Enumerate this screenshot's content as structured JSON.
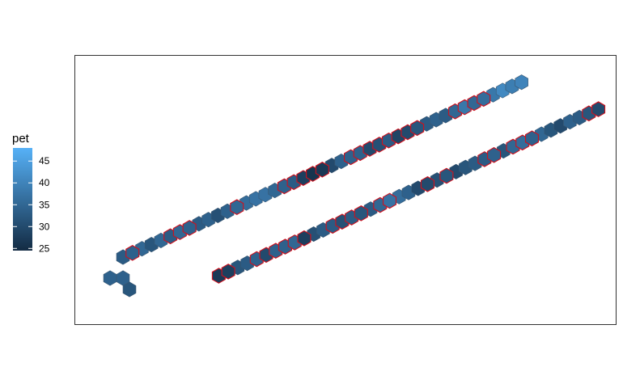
{
  "chart_data": {
    "type": "heatmap",
    "title": "",
    "xlabel": "",
    "ylabel": "",
    "grid": false,
    "legend": {
      "title": "pet",
      "placement": "left",
      "range": [
        24.5,
        48
      ],
      "ticks": [
        25,
        30,
        35,
        40,
        45
      ],
      "colors": [
        "#132B43",
        "#56B1F7"
      ]
    },
    "cells": [
      {
        "col": -1,
        "row": -1,
        "value": 34,
        "outlined": false
      },
      {
        "col": 0,
        "row": -1,
        "value": 34,
        "outlined": false
      },
      {
        "col": 1,
        "row": -1,
        "value": 32,
        "outlined": false
      },
      {
        "col": 0,
        "row": 0,
        "value": 33,
        "outlined": false
      },
      {
        "col": 1,
        "row": 0,
        "value": 34,
        "outlined": true
      },
      {
        "col": 2,
        "row": 0,
        "value": 35,
        "outlined": false
      },
      {
        "col": 3,
        "row": 0,
        "value": 32,
        "outlined": false
      },
      {
        "col": 4,
        "row": 0,
        "value": 35,
        "outlined": false
      },
      {
        "col": 5,
        "row": 0,
        "value": 33,
        "outlined": true
      },
      {
        "col": 6,
        "row": 0,
        "value": 35,
        "outlined": true
      },
      {
        "col": 7,
        "row": 0,
        "value": 34,
        "outlined": true
      },
      {
        "col": 8,
        "row": 0,
        "value": 33,
        "outlined": false
      },
      {
        "col": 9,
        "row": 0,
        "value": 34,
        "outlined": false
      },
      {
        "col": 10,
        "row": 0,
        "value": 31,
        "outlined": false
      },
      {
        "col": 11,
        "row": 0,
        "value": 34,
        "outlined": false
      },
      {
        "col": 12,
        "row": 0,
        "value": 35,
        "outlined": true
      },
      {
        "col": 13,
        "row": 0,
        "value": 36,
        "outlined": false
      },
      {
        "col": 14,
        "row": 0,
        "value": 37,
        "outlined": false
      },
      {
        "col": 15,
        "row": 0,
        "value": 37,
        "outlined": false
      },
      {
        "col": 16,
        "row": 0,
        "value": 35,
        "outlined": false
      },
      {
        "col": 17,
        "row": 0,
        "value": 34,
        "outlined": true
      },
      {
        "col": 18,
        "row": 0,
        "value": 33,
        "outlined": true
      },
      {
        "col": 19,
        "row": 0,
        "value": 28,
        "outlined": true
      },
      {
        "col": 20,
        "row": 0,
        "value": 26,
        "outlined": true
      },
      {
        "col": 21,
        "row": 0,
        "value": 27,
        "outlined": true
      },
      {
        "col": 22,
        "row": 0,
        "value": 30,
        "outlined": false
      },
      {
        "col": 23,
        "row": 0,
        "value": 34,
        "outlined": false
      },
      {
        "col": 24,
        "row": 0,
        "value": 34,
        "outlined": true
      },
      {
        "col": 25,
        "row": 0,
        "value": 34,
        "outlined": true
      },
      {
        "col": 26,
        "row": 0,
        "value": 30,
        "outlined": true
      },
      {
        "col": 27,
        "row": 0,
        "value": 31,
        "outlined": true
      },
      {
        "col": 28,
        "row": 0,
        "value": 33,
        "outlined": true
      },
      {
        "col": 29,
        "row": 0,
        "value": 29,
        "outlined": true
      },
      {
        "col": 30,
        "row": 0,
        "value": 30,
        "outlined": true
      },
      {
        "col": 31,
        "row": 0,
        "value": 32,
        "outlined": true
      },
      {
        "col": 32,
        "row": 0,
        "value": 33,
        "outlined": false
      },
      {
        "col": 33,
        "row": 0,
        "value": 34,
        "outlined": false
      },
      {
        "col": 34,
        "row": 0,
        "value": 33,
        "outlined": false
      },
      {
        "col": 35,
        "row": 0,
        "value": 35,
        "outlined": true
      },
      {
        "col": 36,
        "row": 0,
        "value": 38,
        "outlined": true
      },
      {
        "col": 37,
        "row": 0,
        "value": 35,
        "outlined": true
      },
      {
        "col": 38,
        "row": 0,
        "value": 36,
        "outlined": true
      },
      {
        "col": 39,
        "row": 0,
        "value": 38,
        "outlined": false
      },
      {
        "col": 40,
        "row": 0,
        "value": 41,
        "outlined": false
      },
      {
        "col": 41,
        "row": 0,
        "value": 39,
        "outlined": false
      },
      {
        "col": 42,
        "row": 0,
        "value": 40,
        "outlined": false
      },
      {
        "col": 6,
        "row": 1,
        "value": 27,
        "outlined": true
      },
      {
        "col": 7,
        "row": 1,
        "value": 28,
        "outlined": true
      },
      {
        "col": 8,
        "row": 1,
        "value": 32,
        "outlined": false
      },
      {
        "col": 9,
        "row": 1,
        "value": 33,
        "outlined": false
      },
      {
        "col": 10,
        "row": 1,
        "value": 34,
        "outlined": true
      },
      {
        "col": 11,
        "row": 1,
        "value": 30,
        "outlined": true
      },
      {
        "col": 12,
        "row": 1,
        "value": 34,
        "outlined": true
      },
      {
        "col": 13,
        "row": 1,
        "value": 34,
        "outlined": true
      },
      {
        "col": 14,
        "row": 1,
        "value": 35,
        "outlined": true
      },
      {
        "col": 15,
        "row": 1,
        "value": 28,
        "outlined": true
      },
      {
        "col": 16,
        "row": 1,
        "value": 31,
        "outlined": false
      },
      {
        "col": 17,
        "row": 1,
        "value": 33,
        "outlined": false
      },
      {
        "col": 18,
        "row": 1,
        "value": 33,
        "outlined": true
      },
      {
        "col": 19,
        "row": 1,
        "value": 31,
        "outlined": true
      },
      {
        "col": 20,
        "row": 1,
        "value": 33,
        "outlined": true
      },
      {
        "col": 21,
        "row": 1,
        "value": 32,
        "outlined": true
      },
      {
        "col": 22,
        "row": 1,
        "value": 33,
        "outlined": false
      },
      {
        "col": 23,
        "row": 1,
        "value": 35,
        "outlined": true
      },
      {
        "col": 24,
        "row": 1,
        "value": 37,
        "outlined": true
      },
      {
        "col": 25,
        "row": 1,
        "value": 36,
        "outlined": false
      },
      {
        "col": 26,
        "row": 1,
        "value": 34,
        "outlined": false
      },
      {
        "col": 27,
        "row": 1,
        "value": 30,
        "outlined": false
      },
      {
        "col": 28,
        "row": 1,
        "value": 30,
        "outlined": true
      },
      {
        "col": 29,
        "row": 1,
        "value": 31,
        "outlined": false
      },
      {
        "col": 30,
        "row": 1,
        "value": 32,
        "outlined": true
      },
      {
        "col": 31,
        "row": 1,
        "value": 30,
        "outlined": false
      },
      {
        "col": 32,
        "row": 1,
        "value": 32,
        "outlined": false
      },
      {
        "col": 33,
        "row": 1,
        "value": 33,
        "outlined": false
      },
      {
        "col": 34,
        "row": 1,
        "value": 33,
        "outlined": true
      },
      {
        "col": 35,
        "row": 1,
        "value": 34,
        "outlined": true
      },
      {
        "col": 36,
        "row": 1,
        "value": 32,
        "outlined": false
      },
      {
        "col": 37,
        "row": 1,
        "value": 35,
        "outlined": true
      },
      {
        "col": 38,
        "row": 1,
        "value": 36,
        "outlined": true
      },
      {
        "col": 39,
        "row": 1,
        "value": 34,
        "outlined": true
      },
      {
        "col": 40,
        "row": 1,
        "value": 35,
        "outlined": false
      },
      {
        "col": 41,
        "row": 1,
        "value": 32,
        "outlined": false
      },
      {
        "col": 42,
        "row": 1,
        "value": 30,
        "outlined": false
      },
      {
        "col": 43,
        "row": 1,
        "value": 34,
        "outlined": false
      },
      {
        "col": 44,
        "row": 1,
        "value": 33,
        "outlined": false
      },
      {
        "col": 45,
        "row": 1,
        "value": 32,
        "outlined": true
      },
      {
        "col": 46,
        "row": 1,
        "value": 30,
        "outlined": true
      }
    ]
  }
}
